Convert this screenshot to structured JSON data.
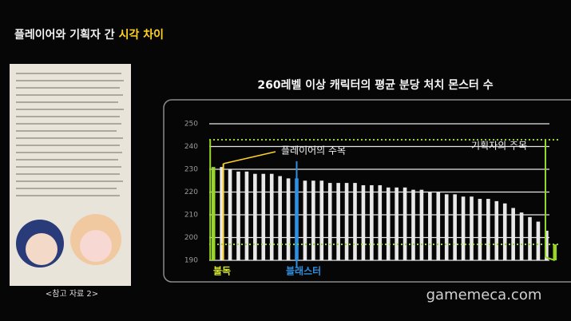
{
  "header": {
    "title": "플레이어와 기획자 간",
    "highlight": "시각 차이"
  },
  "caption": "<참고 자료 2>",
  "watermark": "gamemeca.com",
  "chart_data": {
    "type": "bar",
    "title": "260레벨 이상 캐릭터의 평균 분당 처치 몬스터 수",
    "categories": [
      null,
      null,
      null,
      null,
      null,
      null,
      null,
      null,
      null,
      null,
      null,
      null,
      null,
      null,
      null,
      null,
      null,
      null,
      null,
      null,
      null,
      null,
      null,
      null,
      null,
      null,
      null,
      null,
      null,
      null,
      null,
      null,
      null,
      null,
      null,
      null,
      null,
      null,
      null,
      null,
      null,
      null
    ],
    "values": [
      231,
      231,
      230,
      229,
      229,
      228,
      228,
      228,
      227,
      226,
      226,
      225,
      225,
      225,
      224,
      224,
      224,
      224,
      223,
      223,
      223,
      222,
      222,
      222,
      221,
      221,
      220,
      220,
      219,
      219,
      218,
      218,
      217,
      217,
      216,
      215,
      213,
      211,
      209,
      207,
      203,
      197
    ],
    "colors": [
      "#9ad62a",
      "#e8e8e8",
      "#e8e8e8",
      "#e8e8e8",
      "#e8e8e8",
      "#e8e8e8",
      "#e8e8e8",
      "#e8e8e8",
      "#e8e8e8",
      "#e8e8e8",
      "#2f8fe0",
      "#e8e8e8",
      "#e8e8e8",
      "#e8e8e8",
      "#e8e8e8",
      "#e8e8e8",
      "#e8e8e8",
      "#e8e8e8",
      "#e8e8e8",
      "#e8e8e8",
      "#e8e8e8",
      "#e8e8e8",
      "#e8e8e8",
      "#e8e8e8",
      "#e8e8e8",
      "#e8e8e8",
      "#e8e8e8",
      "#e8e8e8",
      "#e8e8e8",
      "#e8e8e8",
      "#e8e8e8",
      "#e8e8e8",
      "#e8e8e8",
      "#e8e8e8",
      "#e8e8e8",
      "#e8e8e8",
      "#e8e8e8",
      "#e8e8e8",
      "#e8e8e8",
      "#e8e8e8",
      "#e8e8e8",
      "#9ad62a"
    ],
    "ylim": [
      190,
      250
    ],
    "yticks": [
      190,
      200,
      210,
      220,
      230,
      240,
      250
    ],
    "grid": true,
    "reference_lines": [
      243,
      197
    ],
    "annotations": {
      "player": "플레이어의 주목",
      "designer": "기획자의 주목",
      "first": "불독",
      "blaster": "블래스터"
    }
  }
}
